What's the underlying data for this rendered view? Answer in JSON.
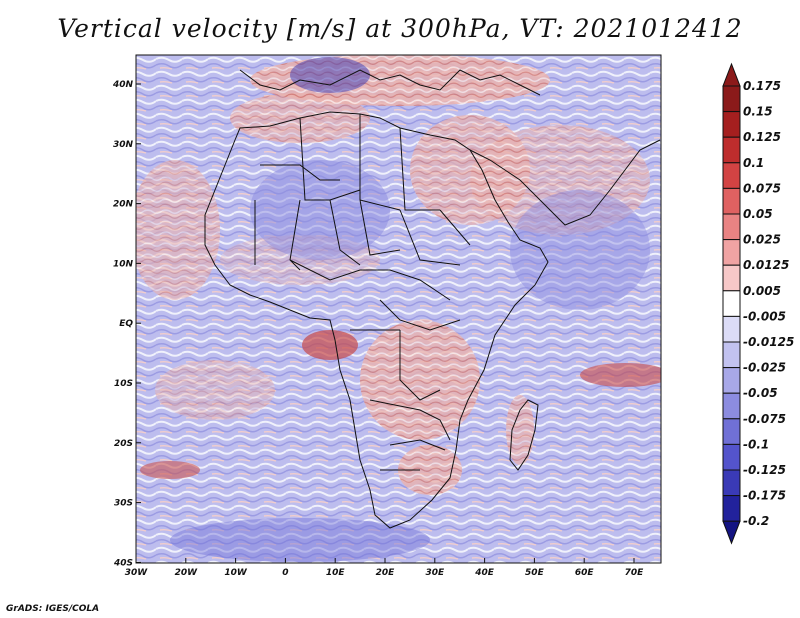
{
  "title": "Vertical velocity [m/s] at 300hPa, VT: 2021012412",
  "credit": "GrADS: IGES/COLA",
  "map": {
    "lon_range": [
      -30,
      75
    ],
    "lat_range": [
      -40,
      45
    ],
    "lon_ticks": [
      "30W",
      "20W",
      "10W",
      "0",
      "10E",
      "20E",
      "30E",
      "40E",
      "50E",
      "60E",
      "70E"
    ],
    "lat_ticks": [
      "40N",
      "30N",
      "20N",
      "10N",
      "EQ",
      "10S",
      "20S",
      "30S",
      "40S"
    ]
  },
  "colorbar": {
    "labels": [
      "0.175",
      "0.15",
      "0.125",
      "0.1",
      "0.075",
      "0.05",
      "0.025",
      "0.0125",
      "0.005",
      "-0.005",
      "-0.0125",
      "-0.025",
      "-0.05",
      "-0.075",
      "-0.1",
      "-0.125",
      "-0.175",
      "-0.2"
    ],
    "colors": [
      "#8b1a1a",
      "#a51f1f",
      "#be2d2d",
      "#d24343",
      "#df6161",
      "#e98383",
      "#f0a3a3",
      "#f7c8c8",
      "#ffffff",
      "#dcdcf7",
      "#c2c2f0",
      "#a8a8e8",
      "#8c8ce0",
      "#7070d6",
      "#5454cc",
      "#3a3ab6",
      "#22229c",
      "#141482"
    ]
  },
  "colors": {
    "land_border": "#111111",
    "field_positive": "#e8a3a0",
    "field_negative": "#a8a8e8"
  }
}
